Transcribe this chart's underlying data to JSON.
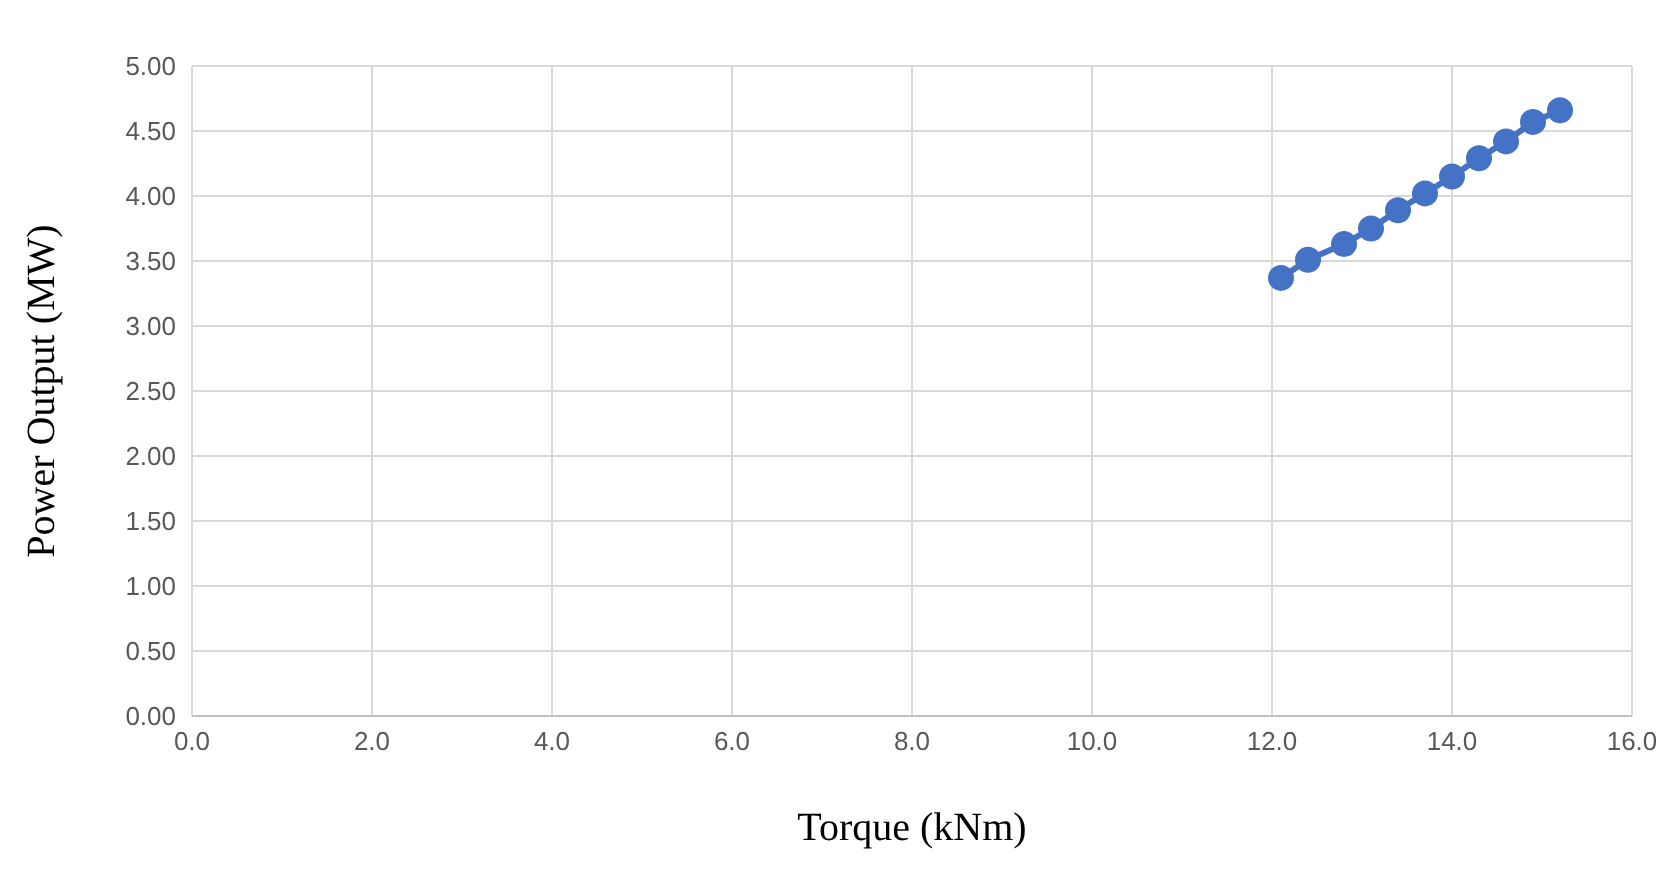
{
  "chart_data": {
    "type": "line",
    "xlabel": "Torque (kNm)",
    "ylabel": "Power Output (MW)",
    "x": [
      12.1,
      12.4,
      12.8,
      13.1,
      13.4,
      13.7,
      14.0,
      14.3,
      14.6,
      14.9,
      15.2
    ],
    "series": [
      {
        "color": "#4472c4",
        "values": [
          3.37,
          3.51,
          3.63,
          3.75,
          3.89,
          4.02,
          4.15,
          4.29,
          4.42,
          4.57,
          4.66
        ]
      }
    ],
    "xlim": [
      0,
      16
    ],
    "xticks": [
      {
        "value": 0,
        "label": "0.0"
      },
      {
        "value": 2,
        "label": "2.0"
      },
      {
        "value": 4,
        "label": "4.0"
      },
      {
        "value": 6,
        "label": "6.0"
      },
      {
        "value": 8,
        "label": "8.0"
      },
      {
        "value": 10,
        "label": "10.0"
      },
      {
        "value": 12,
        "label": "12.0"
      },
      {
        "value": 14,
        "label": "14.0"
      },
      {
        "value": 16,
        "label": "16.0"
      }
    ],
    "ylim": [
      0,
      5
    ],
    "yticks": [
      {
        "value": 0,
        "label": "0.00"
      },
      {
        "value": 0.5,
        "label": "0.50"
      },
      {
        "value": 1,
        "label": "1.00"
      },
      {
        "value": 1.5,
        "label": "1.50"
      },
      {
        "value": 2,
        "label": "2.00"
      },
      {
        "value": 2.5,
        "label": "2.50"
      },
      {
        "value": 3,
        "label": "3.00"
      },
      {
        "value": 3.5,
        "label": "3.50"
      },
      {
        "value": 4,
        "label": "4.00"
      },
      {
        "value": 4.5,
        "label": "4.50"
      },
      {
        "value": 5,
        "label": "5.00"
      }
    ],
    "grid": true,
    "marker": "circle"
  }
}
